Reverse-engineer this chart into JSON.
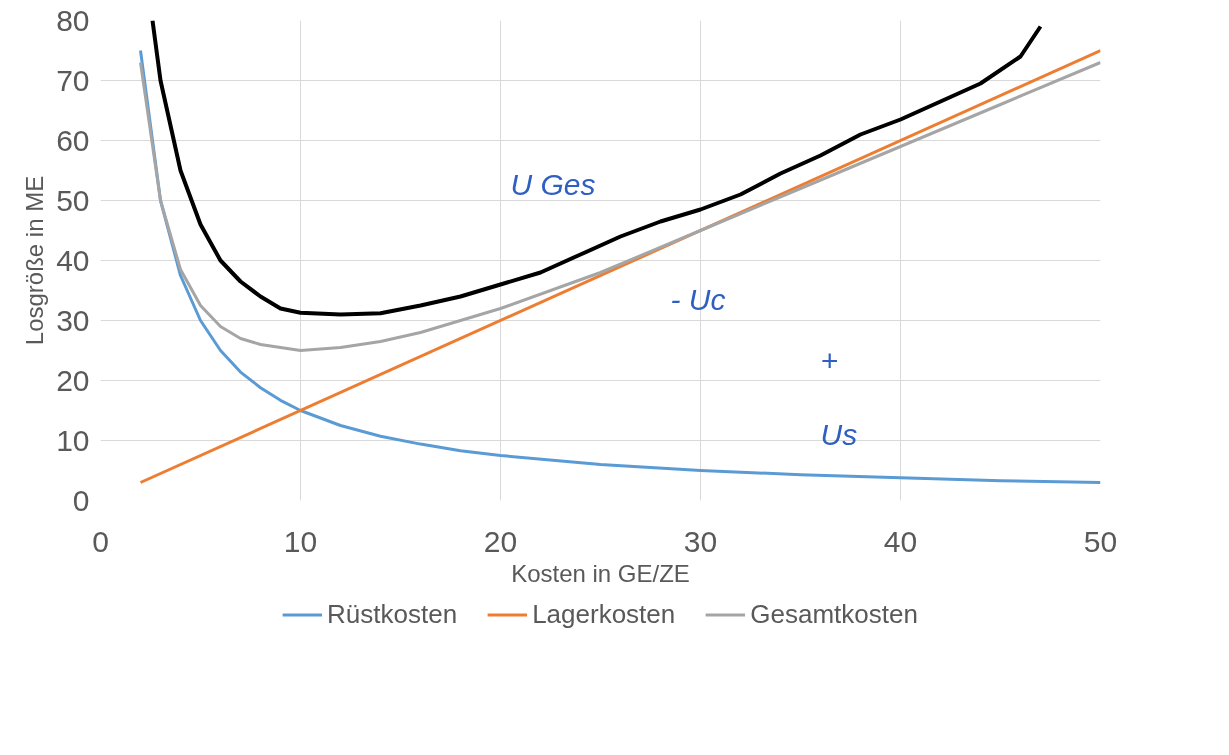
{
  "chart_data": {
    "type": "line",
    "xlabel": "Kosten in GE/ZE",
    "ylabel": "Losgröße in ME",
    "xlim": [
      0,
      50
    ],
    "ylim": [
      0,
      80
    ],
    "xticks": [
      0,
      10,
      20,
      30,
      40,
      50
    ],
    "yticks": [
      0,
      10,
      20,
      30,
      40,
      50,
      60,
      70,
      80
    ],
    "grid": true,
    "legend": "bottom",
    "marker": "none",
    "line_style": "solid",
    "series": [
      {
        "name": "Rüstkosten",
        "color": "#5b9bd5",
        "x": [
          2,
          3,
          4,
          5,
          6,
          7,
          8,
          9,
          10,
          12,
          14,
          16,
          18,
          20,
          25,
          30,
          35,
          40,
          45,
          50
        ],
        "values": [
          75,
          50,
          37.5,
          30,
          25,
          21.4,
          18.8,
          16.7,
          15,
          12.5,
          10.7,
          9.4,
          8.3,
          7.5,
          6,
          5,
          4.3,
          3.8,
          3.3,
          3
        ]
      },
      {
        "name": "Lagerkosten",
        "color": "#ed7d31",
        "x": [
          2,
          50
        ],
        "values": [
          3,
          75
        ]
      },
      {
        "name": "Gesamtkosten",
        "color": "#a5a5a5",
        "x": [
          2,
          3,
          4,
          5,
          6,
          7,
          8,
          10,
          12,
          14,
          16,
          18,
          20,
          25,
          30,
          35,
          40,
          45,
          50
        ],
        "values": [
          73,
          50,
          38.5,
          32.5,
          29,
          27,
          26,
          25,
          25.5,
          26.5,
          28,
          30,
          32,
          38,
          45,
          52,
          59,
          66,
          73
        ]
      },
      {
        "color": "#000000",
        "x": [
          2.6,
          3,
          4,
          5,
          6,
          7,
          8,
          9,
          10,
          12,
          14,
          16,
          18,
          20,
          22,
          24,
          26,
          28,
          30,
          32,
          34,
          36,
          38,
          40,
          42,
          44,
          46,
          47
        ],
        "values": [
          80,
          70,
          55,
          46,
          40,
          36.5,
          34,
          32,
          31.3,
          31,
          31.2,
          32.5,
          34,
          36,
          38,
          41,
          44,
          46.5,
          48.5,
          51,
          54.5,
          57.5,
          61,
          63.5,
          66.5,
          69.5,
          74,
          79
        ]
      }
    ],
    "annotations": [
      "U Ges",
      "- Uc",
      "+",
      "Us"
    ]
  }
}
